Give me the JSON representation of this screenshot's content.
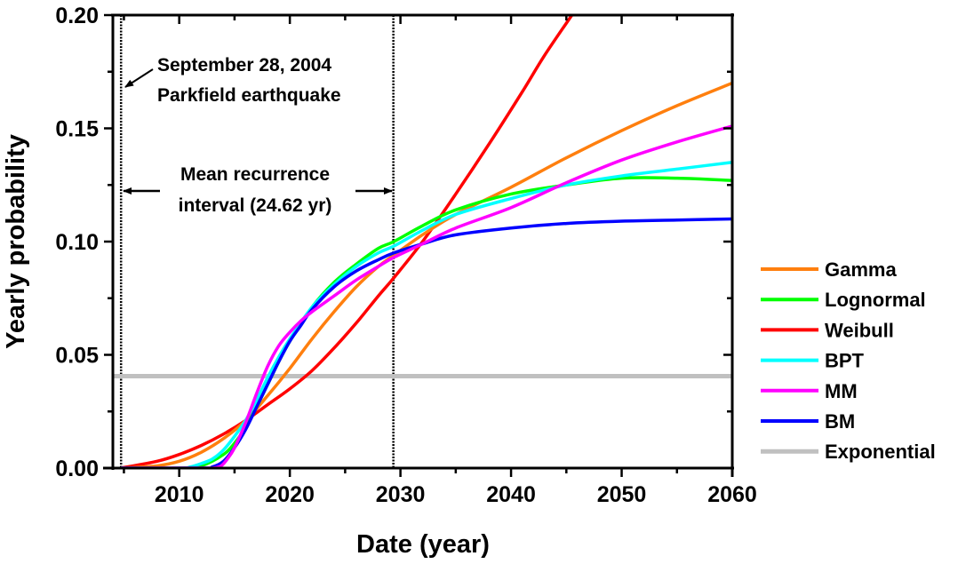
{
  "chart_data": {
    "type": "line",
    "title": "",
    "xlabel": "Date (year)",
    "ylabel": "Yearly probability",
    "xlim": [
      2004.0,
      2060
    ],
    "ylim": [
      0.0,
      0.2
    ],
    "xticks": [
      2010,
      2020,
      2030,
      2040,
      2050,
      2060
    ],
    "xtick_labels": [
      "2010",
      "2020",
      "2030",
      "2040",
      "2050",
      "2060"
    ],
    "xminor_ticks": [
      2005,
      2015,
      2025,
      2035,
      2045,
      2055
    ],
    "yticks": [
      0.0,
      0.05,
      0.1,
      0.15,
      0.2
    ],
    "ytick_labels": [
      "0.00",
      "0.05",
      "0.10",
      "0.15",
      "0.20"
    ],
    "yminor_ticks": [
      0.025,
      0.075,
      0.125,
      0.175
    ],
    "grid": false,
    "legend_position": "outside-right",
    "series": [
      {
        "name": "Gamma",
        "color": "#ff7f0e",
        "x": [
          2004.74,
          2008,
          2010,
          2012,
          2014,
          2016,
          2018,
          2020,
          2022,
          2024,
          2026,
          2028,
          2029.4,
          2032,
          2035,
          2040,
          2045,
          2050,
          2055,
          2060
        ],
        "y": [
          0.0,
          0.001,
          0.003,
          0.007,
          0.013,
          0.021,
          0.032,
          0.044,
          0.057,
          0.069,
          0.08,
          0.089,
          0.094,
          0.103,
          0.112,
          0.124,
          0.137,
          0.149,
          0.16,
          0.17
        ]
      },
      {
        "name": "Lognormal",
        "color": "#00ff00",
        "x": [
          2004.74,
          2010,
          2012,
          2014,
          2015,
          2016,
          2017,
          2018,
          2019,
          2020,
          2022,
          2024,
          2026,
          2028,
          2029.4,
          2032,
          2035,
          2040,
          2045,
          2050,
          2055,
          2060
        ],
        "y": [
          0.0,
          0.0,
          0.001,
          0.006,
          0.011,
          0.018,
          0.027,
          0.037,
          0.047,
          0.056,
          0.071,
          0.082,
          0.09,
          0.097,
          0.1,
          0.107,
          0.114,
          0.121,
          0.125,
          0.128,
          0.128,
          0.127
        ]
      },
      {
        "name": "Weibull",
        "color": "#ff0000",
        "x": [
          2004.74,
          2008,
          2010,
          2012,
          2014,
          2016,
          2018,
          2020,
          2022,
          2024,
          2026,
          2028,
          2029.4,
          2032,
          2035,
          2038,
          2041,
          2043,
          2045.5
        ],
        "y": [
          0.0,
          0.003,
          0.006,
          0.01,
          0.015,
          0.021,
          0.028,
          0.035,
          0.043,
          0.053,
          0.064,
          0.076,
          0.084,
          0.1,
          0.121,
          0.143,
          0.166,
          0.182,
          0.2
        ]
      },
      {
        "name": "BPT",
        "color": "#00ffff",
        "x": [
          2004.74,
          2010,
          2011,
          2012,
          2013,
          2014,
          2015,
          2016,
          2017,
          2018,
          2019,
          2020,
          2022,
          2024,
          2026,
          2028,
          2029.4,
          2032,
          2035,
          2040,
          2045,
          2050,
          2055,
          2060
        ],
        "y": [
          0.0,
          0.0,
          0.0005,
          0.002,
          0.004,
          0.008,
          0.014,
          0.021,
          0.03,
          0.04,
          0.049,
          0.057,
          0.071,
          0.081,
          0.089,
          0.095,
          0.098,
          0.105,
          0.112,
          0.119,
          0.125,
          0.129,
          0.132,
          0.135
        ]
      },
      {
        "name": "MM",
        "color": "#ff00ff",
        "x": [
          2004.74,
          2012,
          2013,
          2013.8,
          2014.5,
          2015,
          2016,
          2017,
          2018,
          2019,
          2020,
          2021,
          2022,
          2024,
          2026,
          2028,
          2029.4,
          2032,
          2035,
          2040,
          2045,
          2050,
          2055,
          2060
        ],
        "y": [
          0.0,
          0.0,
          0.0,
          0.001,
          0.005,
          0.009,
          0.02,
          0.033,
          0.045,
          0.054,
          0.06,
          0.065,
          0.069,
          0.076,
          0.083,
          0.089,
          0.093,
          0.099,
          0.106,
          0.115,
          0.126,
          0.136,
          0.144,
          0.151
        ]
      },
      {
        "name": "BM",
        "color": "#0000ff",
        "x": [
          2004.74,
          2012,
          2013,
          2014,
          2015,
          2016,
          2017,
          2018,
          2019,
          2020,
          2021,
          2022,
          2024,
          2026,
          2028,
          2029.4,
          2032,
          2035,
          2040,
          2045,
          2050,
          2055,
          2060
        ],
        "y": [
          0.0,
          0.0,
          0.0005,
          0.003,
          0.009,
          0.017,
          0.027,
          0.037,
          0.047,
          0.056,
          0.063,
          0.07,
          0.08,
          0.087,
          0.092,
          0.095,
          0.099,
          0.103,
          0.106,
          0.108,
          0.109,
          0.1095,
          0.11
        ]
      },
      {
        "name": "Exponential",
        "color": "#c0c0c0",
        "x": [
          2004.0,
          2060
        ],
        "y": [
          0.0406,
          0.0406
        ]
      }
    ],
    "vlines": [
      {
        "x": 2004.74,
        "style": "dotted",
        "label": "September 28, 2004 Parkfield earthquake"
      },
      {
        "x": 2029.36,
        "style": "dotted"
      }
    ],
    "annotations": [
      {
        "lines": [
          "September 28, 2004",
          "Parkfield earthquake"
        ],
        "arrow_to": "earthquake-line"
      },
      {
        "lines": [
          "Mean recurrence",
          "interval (24.62 yr)"
        ],
        "arrow": "double-span",
        "from": 2004.74,
        "to": 2029.36
      }
    ]
  }
}
